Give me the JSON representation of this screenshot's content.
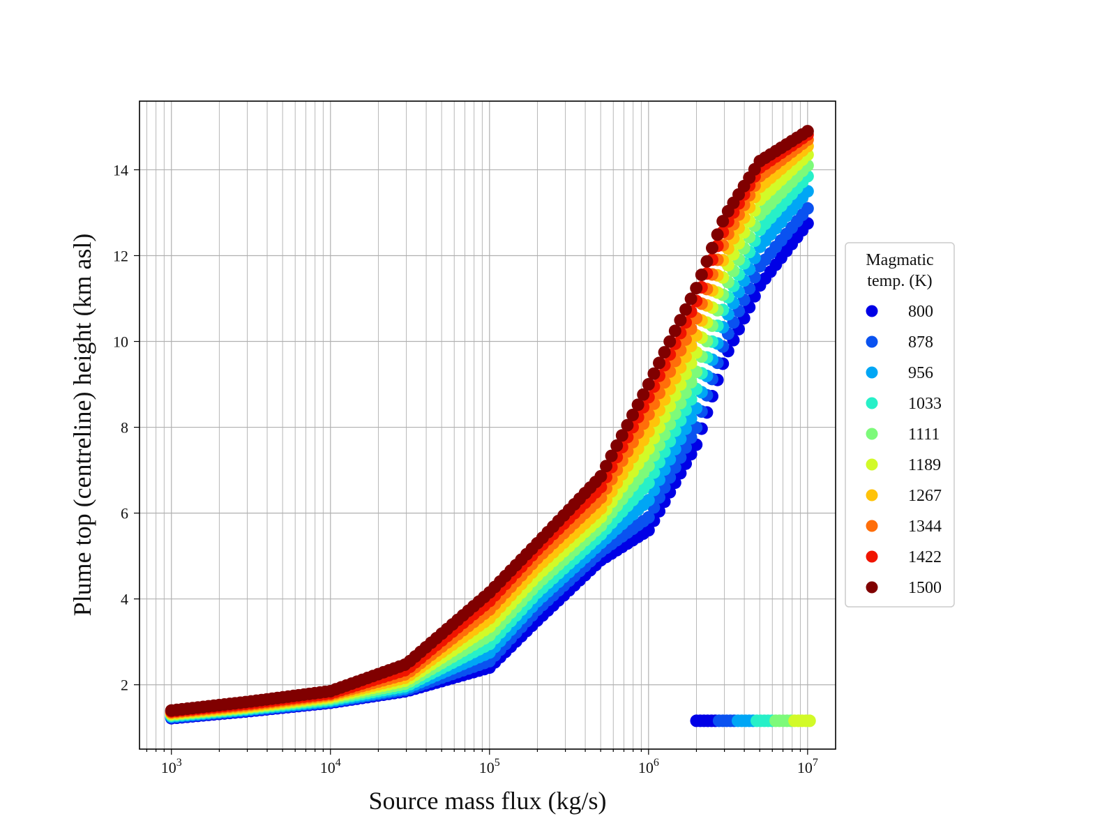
{
  "chart_data": {
    "type": "scatter",
    "title": "",
    "xlabel": "Source mass flux (kg/s)",
    "ylabel": "Plume top (centreline) height (km asl)",
    "xscale": "log",
    "xlim": [
      630,
      15000000
    ],
    "ylim": [
      0.5,
      15.6
    ],
    "x_ticks": [
      {
        "value": 1000,
        "base": "10",
        "exp": "3"
      },
      {
        "value": 10000,
        "base": "10",
        "exp": "4"
      },
      {
        "value": 100000,
        "base": "10",
        "exp": "5"
      },
      {
        "value": 1000000,
        "base": "10",
        "exp": "6"
      },
      {
        "value": 10000000,
        "base": "10",
        "exp": "7"
      }
    ],
    "y_ticks": [
      2,
      4,
      6,
      8,
      10,
      12,
      14
    ],
    "grid": true,
    "grid_minor_x": true,
    "legend": {
      "title_line1": "Magmatic",
      "title_line2": "temp. (K)",
      "placement": "outside-right"
    },
    "series": [
      {
        "name": "800",
        "color": "#0000e6",
        "points": [
          [
            1000,
            1.22
          ],
          [
            3000,
            1.38
          ],
          [
            10000,
            1.58
          ],
          [
            30000,
            1.85
          ],
          [
            100000,
            2.4
          ],
          [
            200000,
            3.5
          ],
          [
            500000,
            4.9
          ],
          [
            1000000,
            5.6
          ],
          [
            2000000,
            7.6
          ],
          [
            3000000,
            9.6
          ],
          [
            5000000,
            11.3
          ],
          [
            10000000,
            12.75
          ]
        ]
      },
      {
        "name": "878",
        "color": "#0a52f0",
        "points": [
          [
            1000,
            1.24
          ],
          [
            3000,
            1.4
          ],
          [
            10000,
            1.6
          ],
          [
            30000,
            1.88
          ],
          [
            100000,
            2.55
          ],
          [
            200000,
            3.75
          ],
          [
            500000,
            5.1
          ],
          [
            1000000,
            5.9
          ],
          [
            2000000,
            8.0
          ],
          [
            3000000,
            10.0
          ],
          [
            5000000,
            11.75
          ],
          [
            10000000,
            13.1
          ]
        ]
      },
      {
        "name": "956",
        "color": "#00a6f5",
        "points": [
          [
            1000,
            1.26
          ],
          [
            3000,
            1.42
          ],
          [
            10000,
            1.62
          ],
          [
            30000,
            1.92
          ],
          [
            100000,
            2.75
          ],
          [
            200000,
            3.95
          ],
          [
            500000,
            5.3
          ],
          [
            1000000,
            6.3
          ],
          [
            2000000,
            8.45
          ],
          [
            3000000,
            10.45
          ],
          [
            5000000,
            12.2
          ],
          [
            10000000,
            13.5
          ]
        ]
      },
      {
        "name": "1033",
        "color": "#27f0c8",
        "points": [
          [
            1000,
            1.28
          ],
          [
            3000,
            1.44
          ],
          [
            10000,
            1.65
          ],
          [
            30000,
            1.97
          ],
          [
            100000,
            2.95
          ],
          [
            200000,
            4.15
          ],
          [
            500000,
            5.5
          ],
          [
            1000000,
            6.7
          ],
          [
            2000000,
            8.9
          ],
          [
            3000000,
            10.85
          ],
          [
            5000000,
            12.6
          ],
          [
            10000000,
            13.85
          ]
        ]
      },
      {
        "name": "1111",
        "color": "#7dfa7a",
        "points": [
          [
            1000,
            1.3
          ],
          [
            3000,
            1.46
          ],
          [
            10000,
            1.68
          ],
          [
            30000,
            2.03
          ],
          [
            100000,
            3.15
          ],
          [
            200000,
            4.35
          ],
          [
            500000,
            5.7
          ],
          [
            1000000,
            7.1
          ],
          [
            2000000,
            9.3
          ],
          [
            3000000,
            11.2
          ],
          [
            5000000,
            12.95
          ],
          [
            10000000,
            14.1
          ]
        ]
      },
      {
        "name": "1189",
        "color": "#d2fa28",
        "points": [
          [
            1000,
            1.32
          ],
          [
            3000,
            1.48
          ],
          [
            10000,
            1.71
          ],
          [
            30000,
            2.1
          ],
          [
            100000,
            3.35
          ],
          [
            200000,
            4.55
          ],
          [
            500000,
            5.9
          ],
          [
            1000000,
            7.5
          ],
          [
            2000000,
            9.75
          ],
          [
            3000000,
            11.6
          ],
          [
            5000000,
            13.3
          ],
          [
            10000000,
            14.35
          ]
        ]
      },
      {
        "name": "1267",
        "color": "#ffc30a",
        "points": [
          [
            1000,
            1.34
          ],
          [
            3000,
            1.5
          ],
          [
            10000,
            1.74
          ],
          [
            30000,
            2.17
          ],
          [
            100000,
            3.55
          ],
          [
            200000,
            4.75
          ],
          [
            500000,
            6.1
          ],
          [
            1000000,
            7.9
          ],
          [
            2000000,
            10.15
          ],
          [
            3000000,
            12.0
          ],
          [
            5000000,
            13.6
          ],
          [
            10000000,
            14.55
          ]
        ]
      },
      {
        "name": "1344",
        "color": "#ff6e0a",
        "points": [
          [
            1000,
            1.36
          ],
          [
            3000,
            1.53
          ],
          [
            10000,
            1.77
          ],
          [
            30000,
            2.25
          ],
          [
            100000,
            3.75
          ],
          [
            200000,
            4.95
          ],
          [
            500000,
            6.35
          ],
          [
            1000000,
            8.3
          ],
          [
            2000000,
            10.55
          ],
          [
            3000000,
            12.35
          ],
          [
            5000000,
            13.85
          ],
          [
            10000000,
            14.7
          ]
        ]
      },
      {
        "name": "1422",
        "color": "#f01400",
        "points": [
          [
            1000,
            1.38
          ],
          [
            3000,
            1.56
          ],
          [
            10000,
            1.8
          ],
          [
            30000,
            2.35
          ],
          [
            100000,
            3.95
          ],
          [
            200000,
            5.15
          ],
          [
            500000,
            6.6
          ],
          [
            1000000,
            8.7
          ],
          [
            2000000,
            10.95
          ],
          [
            3000000,
            12.65
          ],
          [
            5000000,
            14.05
          ],
          [
            10000000,
            14.82
          ]
        ]
      },
      {
        "name": "1500",
        "color": "#800000",
        "points": [
          [
            1000,
            1.4
          ],
          [
            3000,
            1.6
          ],
          [
            10000,
            1.85
          ],
          [
            30000,
            2.48
          ],
          [
            100000,
            4.15
          ],
          [
            200000,
            5.3
          ],
          [
            500000,
            6.85
          ],
          [
            1000000,
            9.0
          ],
          [
            2000000,
            11.25
          ],
          [
            3000000,
            12.9
          ],
          [
            5000000,
            14.2
          ],
          [
            10000000,
            14.9
          ]
        ]
      }
    ],
    "low_branch": {
      "y": 1.16,
      "x_start": 2000000,
      "x_end": 10300000,
      "colors": [
        "#0000e6",
        "#0a52f0",
        "#00a6f5",
        "#27f0c8",
        "#7dfa7a",
        "#d2fa28"
      ]
    }
  }
}
